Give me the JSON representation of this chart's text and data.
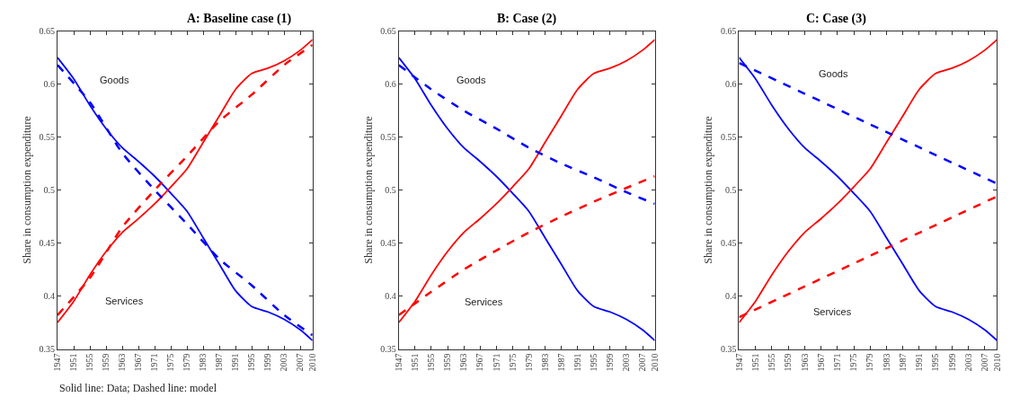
{
  "chart_data": [
    {
      "type": "line",
      "title": "A: Baseline case (1)",
      "ylabel": "Share in consumption expenditure",
      "xlim": [
        1947,
        2010
      ],
      "ylim": [
        0.35,
        0.65
      ],
      "xticks": [
        1947,
        1951,
        1955,
        1959,
        1963,
        1967,
        1971,
        1975,
        1979,
        1983,
        1987,
        1991,
        1995,
        1999,
        2003,
        2007,
        2010
      ],
      "yticks": [
        0.35,
        0.4,
        0.45,
        0.5,
        0.55,
        0.6,
        0.65
      ],
      "legend": false,
      "annotations": [
        "Goods",
        "Services",
        "Solid line: Data; Dashed line: model"
      ],
      "series": [
        {
          "color": "#0000ff",
          "line_style": "solid",
          "x": [
            1947,
            1951,
            1955,
            1959,
            1963,
            1967,
            1971,
            1975,
            1979,
            1983,
            1987,
            1991,
            1995,
            1999,
            2003,
            2007,
            2010
          ],
          "values": [
            0.625,
            0.605,
            0.58,
            0.558,
            0.54,
            0.527,
            0.513,
            0.497,
            0.48,
            0.455,
            0.43,
            0.405,
            0.39,
            0.385,
            0.378,
            0.368,
            0.358
          ]
        },
        {
          "color": "#ff0000",
          "line_style": "solid",
          "x": [
            1947,
            1951,
            1955,
            1959,
            1963,
            1967,
            1971,
            1975,
            1979,
            1983,
            1987,
            1991,
            1995,
            1999,
            2003,
            2007,
            2010
          ],
          "values": [
            0.375,
            0.395,
            0.42,
            0.442,
            0.46,
            0.473,
            0.487,
            0.503,
            0.52,
            0.545,
            0.57,
            0.595,
            0.61,
            0.615,
            0.622,
            0.632,
            0.642
          ]
        },
        {
          "color": "#0000ff",
          "line_style": "dashed",
          "x": [
            1947,
            1955,
            1963,
            1971,
            1979,
            1987,
            1995,
            2003,
            2010
          ],
          "values": [
            0.618,
            0.583,
            0.535,
            0.5,
            0.468,
            0.435,
            0.41,
            0.382,
            0.363
          ]
        },
        {
          "color": "#ff0000",
          "line_style": "dashed",
          "x": [
            1947,
            1955,
            1963,
            1971,
            1979,
            1987,
            1995,
            2003,
            2010
          ],
          "values": [
            0.382,
            0.417,
            0.465,
            0.5,
            0.532,
            0.565,
            0.59,
            0.618,
            0.637
          ]
        }
      ]
    },
    {
      "type": "line",
      "title": "B: Case (2)",
      "ylabel": "Share in consumption expenditure",
      "xlim": [
        1947,
        2010
      ],
      "ylim": [
        0.35,
        0.65
      ],
      "xticks": [
        1947,
        1951,
        1955,
        1959,
        1963,
        1967,
        1971,
        1975,
        1979,
        1983,
        1987,
        1991,
        1995,
        1999,
        2003,
        2007,
        2010
      ],
      "yticks": [
        0.35,
        0.4,
        0.45,
        0.5,
        0.55,
        0.6,
        0.65
      ],
      "legend": false,
      "annotations": [
        "Goods",
        "Services"
      ],
      "series": [
        {
          "color": "#0000ff",
          "line_style": "solid",
          "x": [
            1947,
            1951,
            1955,
            1959,
            1963,
            1967,
            1971,
            1975,
            1979,
            1983,
            1987,
            1991,
            1995,
            1999,
            2003,
            2007,
            2010
          ],
          "values": [
            0.625,
            0.605,
            0.58,
            0.558,
            0.54,
            0.527,
            0.513,
            0.497,
            0.48,
            0.455,
            0.43,
            0.405,
            0.39,
            0.385,
            0.378,
            0.368,
            0.358
          ]
        },
        {
          "color": "#ff0000",
          "line_style": "solid",
          "x": [
            1947,
            1951,
            1955,
            1959,
            1963,
            1967,
            1971,
            1975,
            1979,
            1983,
            1987,
            1991,
            1995,
            1999,
            2003,
            2007,
            2010
          ],
          "values": [
            0.375,
            0.395,
            0.42,
            0.442,
            0.46,
            0.473,
            0.487,
            0.503,
            0.52,
            0.545,
            0.57,
            0.595,
            0.61,
            0.615,
            0.622,
            0.632,
            0.642
          ]
        },
        {
          "color": "#0000ff",
          "line_style": "dashed",
          "x": [
            1947,
            1955,
            1963,
            1971,
            1979,
            1987,
            1995,
            2003,
            2010
          ],
          "values": [
            0.618,
            0.595,
            0.575,
            0.558,
            0.54,
            0.525,
            0.512,
            0.498,
            0.487
          ]
        },
        {
          "color": "#ff0000",
          "line_style": "dashed",
          "x": [
            1947,
            1955,
            1963,
            1971,
            1979,
            1987,
            1995,
            2003,
            2010
          ],
          "values": [
            0.382,
            0.404,
            0.425,
            0.443,
            0.46,
            0.475,
            0.489,
            0.502,
            0.513
          ]
        }
      ]
    },
    {
      "type": "line",
      "title": "C: Case (3)",
      "ylabel": "Share in consumption expenditure",
      "xlim": [
        1947,
        2010
      ],
      "ylim": [
        0.35,
        0.65
      ],
      "xticks": [
        1947,
        1951,
        1955,
        1959,
        1963,
        1967,
        1971,
        1975,
        1979,
        1983,
        1987,
        1991,
        1995,
        1999,
        2003,
        2007,
        2010
      ],
      "yticks": [
        0.35,
        0.4,
        0.45,
        0.5,
        0.55,
        0.6,
        0.65
      ],
      "legend": false,
      "annotations": [
        "Goods",
        "Services"
      ],
      "series": [
        {
          "color": "#0000ff",
          "line_style": "solid",
          "x": [
            1947,
            1951,
            1955,
            1959,
            1963,
            1967,
            1971,
            1975,
            1979,
            1983,
            1987,
            1991,
            1995,
            1999,
            2003,
            2007,
            2010
          ],
          "values": [
            0.625,
            0.605,
            0.58,
            0.558,
            0.54,
            0.527,
            0.513,
            0.497,
            0.48,
            0.455,
            0.43,
            0.405,
            0.39,
            0.385,
            0.378,
            0.368,
            0.358
          ]
        },
        {
          "color": "#ff0000",
          "line_style": "solid",
          "x": [
            1947,
            1951,
            1955,
            1959,
            1963,
            1967,
            1971,
            1975,
            1979,
            1983,
            1987,
            1991,
            1995,
            1999,
            2003,
            2007,
            2010
          ],
          "values": [
            0.375,
            0.395,
            0.42,
            0.442,
            0.46,
            0.473,
            0.487,
            0.503,
            0.52,
            0.545,
            0.57,
            0.595,
            0.61,
            0.615,
            0.622,
            0.632,
            0.642
          ]
        },
        {
          "color": "#0000ff",
          "line_style": "dashed",
          "x": [
            1947,
            1979,
            2010
          ],
          "values": [
            0.62,
            0.562,
            0.506
          ]
        },
        {
          "color": "#ff0000",
          "line_style": "dashed",
          "x": [
            1947,
            1979,
            2010
          ],
          "values": [
            0.38,
            0.438,
            0.494
          ]
        }
      ]
    }
  ]
}
